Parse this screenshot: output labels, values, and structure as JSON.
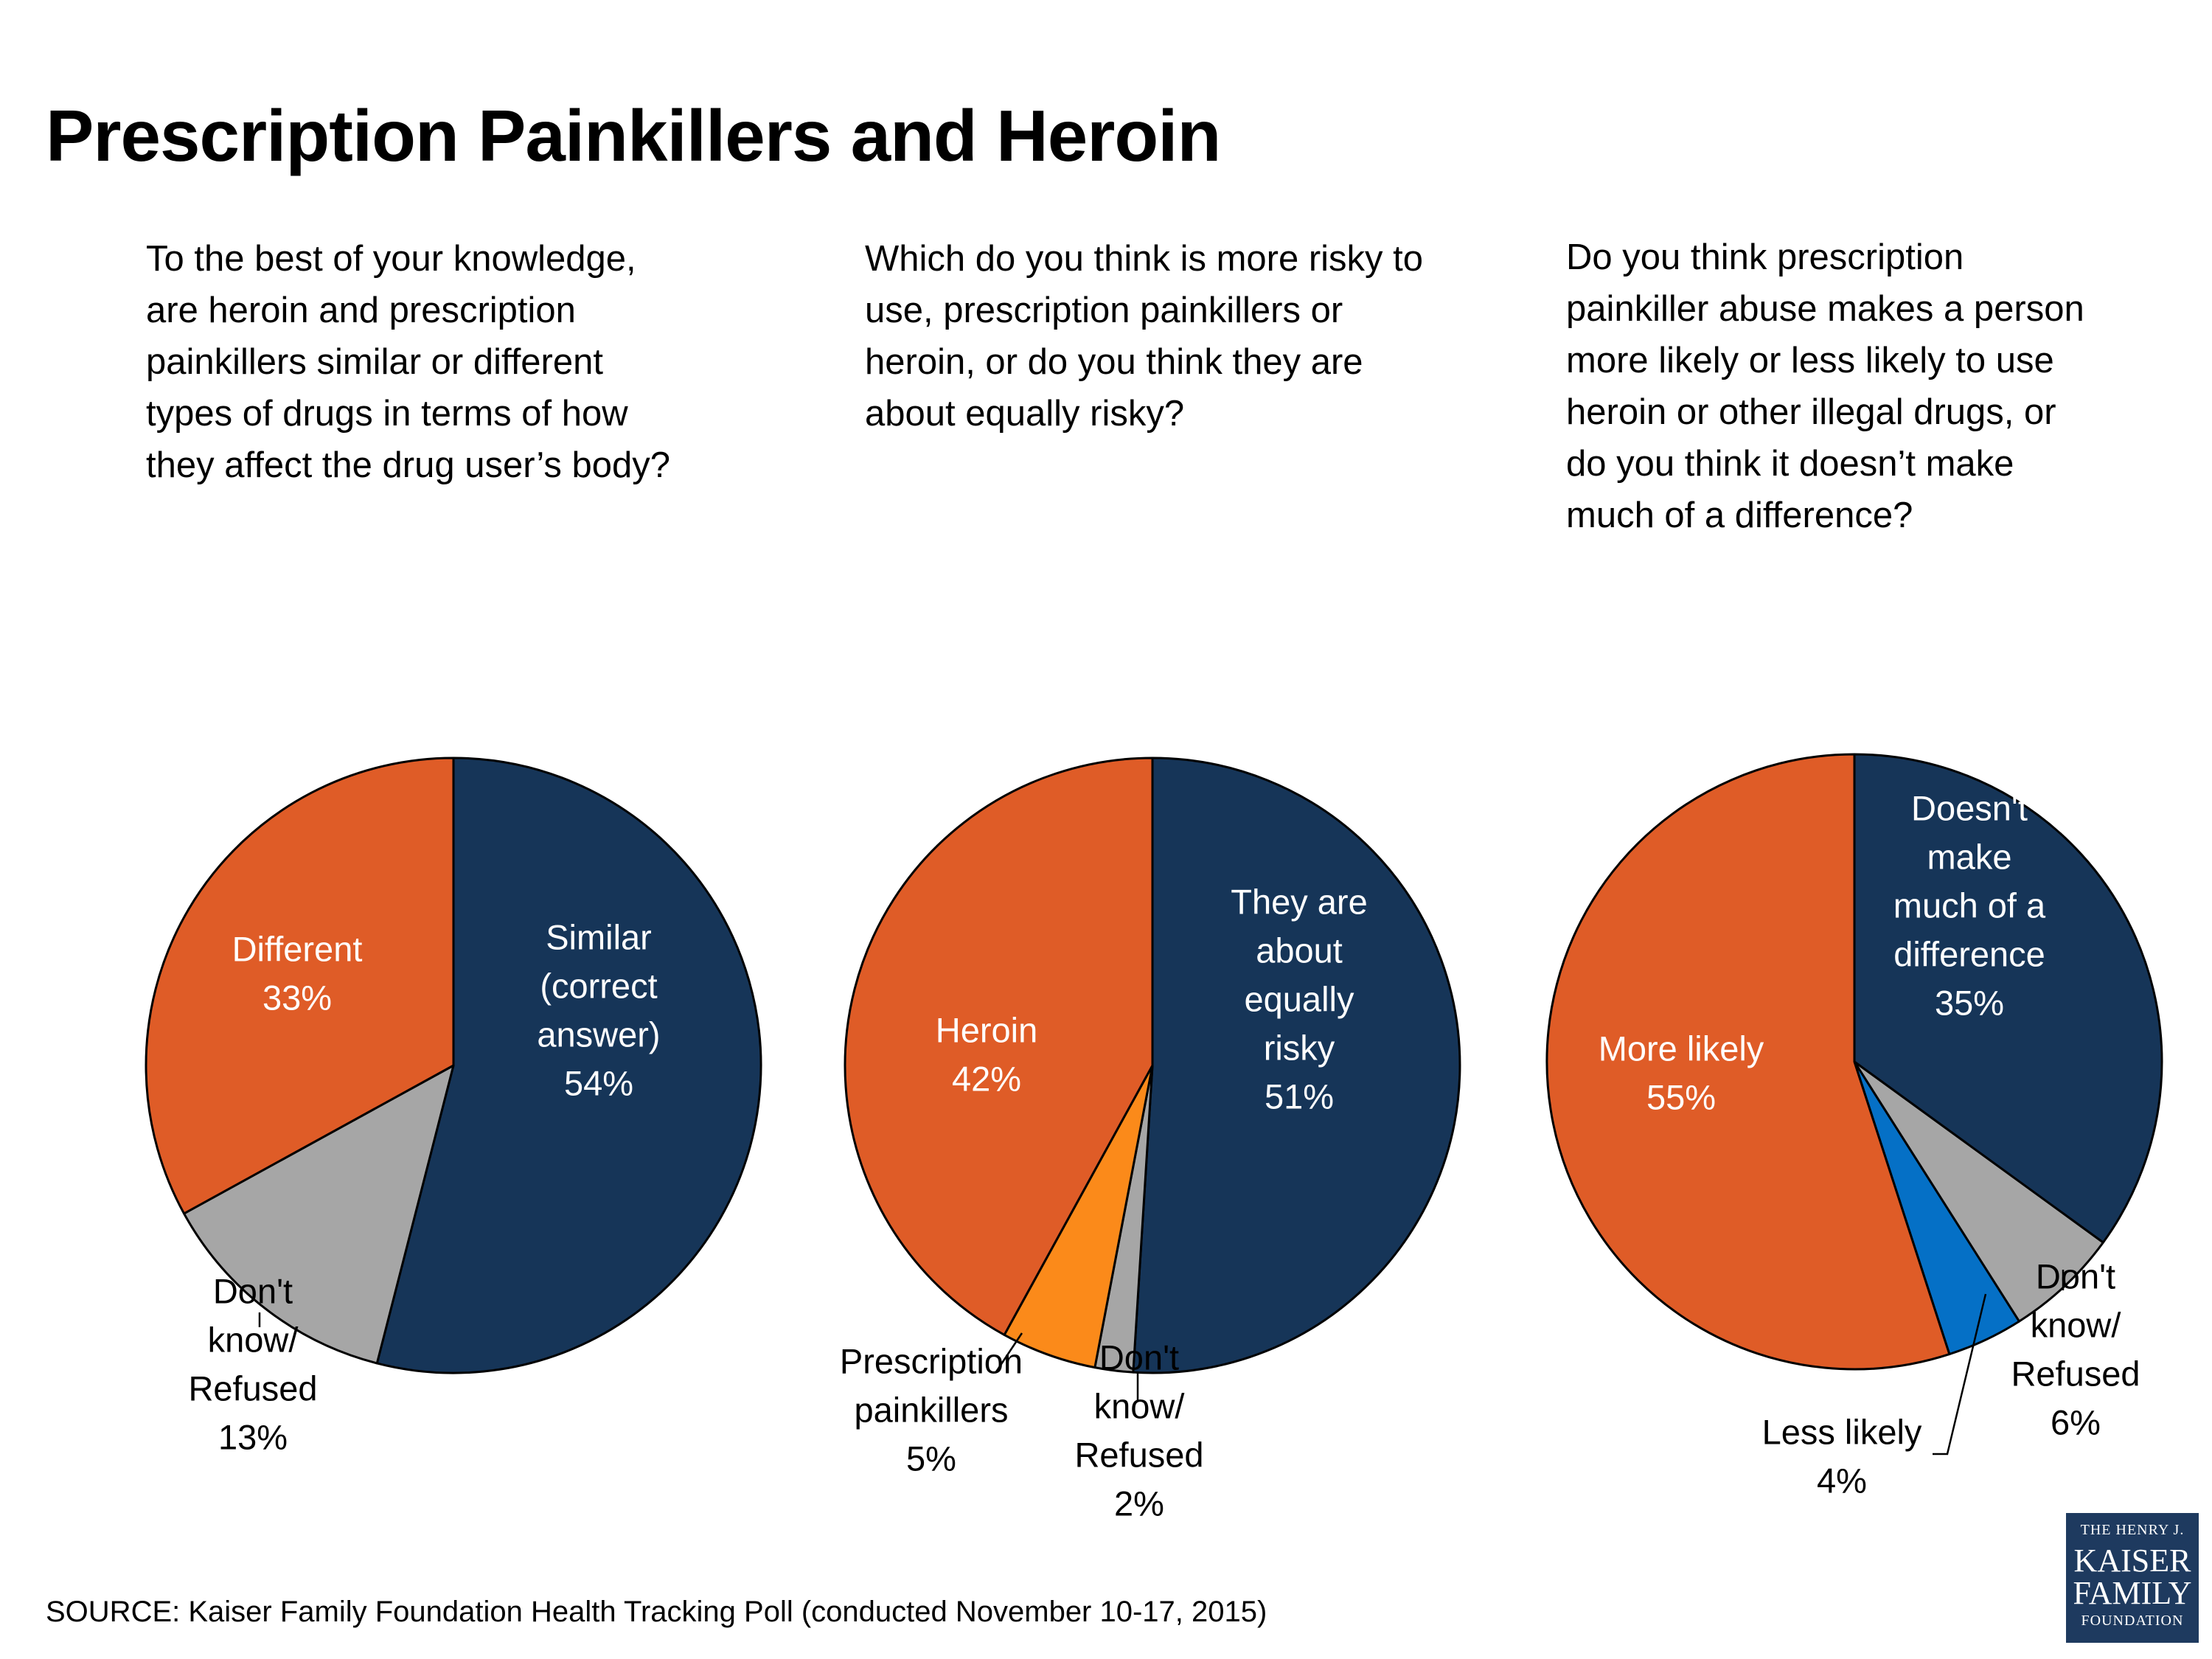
{
  "title": "Prescription Painkillers and Heroin",
  "questions": [
    [
      "To the best of your knowledge,",
      "are heroin and prescription",
      "painkillers similar or different",
      "types of drugs in terms of how",
      "they affect the drug user’s body?"
    ],
    [
      "Which do you think is more risky to",
      "use, prescription painkillers or",
      "heroin, or do you think they are",
      "about equally risky?"
    ],
    [
      "Do you think prescription",
      "painkiller abuse makes a person",
      "more likely or less likely to use",
      "heroin or other illegal drugs, or",
      "do you think it doesn’t make",
      "much of a difference?"
    ]
  ],
  "chart_data": [
    {
      "type": "pie",
      "title": "To the best of your knowledge, are heroin and prescription painkillers similar or different types of drugs in terms of how they affect the drug user’s body?",
      "start": "12 o'clock, clockwise",
      "slices": [
        {
          "label": "Similar (correct answer)",
          "lines": [
            "Similar",
            "(correct",
            "answer)"
          ],
          "value": 54,
          "pct": "54%",
          "color": "#163558",
          "text_color": "#ffffff",
          "label_position": "inside"
        },
        {
          "label": "Don't know/ Refused",
          "lines": [
            "Don't",
            "know/",
            "Refused"
          ],
          "value": 13,
          "pct": "13%",
          "color": "#a6a6a6",
          "text_color": "#000000",
          "label_position": "outside"
        },
        {
          "label": "Different",
          "lines": [
            "Different"
          ],
          "value": 33,
          "pct": "33%",
          "color": "#df5c27",
          "text_color": "#ffffff",
          "label_position": "inside"
        }
      ]
    },
    {
      "type": "pie",
      "title": "Which do you think is more risky to use, prescription painkillers or heroin, or do you think they are about equally risky?",
      "start": "12 o'clock, clockwise",
      "slices": [
        {
          "label": "They are about equally risky",
          "lines": [
            "They are",
            "about",
            "equally",
            "risky"
          ],
          "value": 51,
          "pct": "51%",
          "color": "#163558",
          "text_color": "#ffffff",
          "label_position": "inside"
        },
        {
          "label": "Don't know/ Refused",
          "lines": [
            "Don't",
            "know/",
            "Refused"
          ],
          "value": 2,
          "pct": "2%",
          "color": "#a6a6a6",
          "text_color": "#000000",
          "label_position": "outside"
        },
        {
          "label": "Prescription painkillers",
          "lines": [
            "Prescription",
            "painkillers"
          ],
          "value": 5,
          "pct": "5%",
          "color": "#fb8a1a",
          "text_color": "#000000",
          "label_position": "outside"
        },
        {
          "label": "Heroin",
          "lines": [
            "Heroin"
          ],
          "value": 42,
          "pct": "42%",
          "color": "#df5c27",
          "text_color": "#ffffff",
          "label_position": "inside"
        }
      ]
    },
    {
      "type": "pie",
      "title": "Do you think prescription painkiller abuse makes a person more likely or less likely to use heroin or other illegal drugs, or do you think it doesn’t make much of a difference?",
      "start": "12 o'clock, clockwise",
      "slices": [
        {
          "label": "Doesn't make much of a difference",
          "lines": [
            "Doesn't",
            "make",
            "much of a",
            "difference"
          ],
          "value": 35,
          "pct": "35%",
          "color": "#163558",
          "text_color": "#ffffff",
          "label_position": "inside"
        },
        {
          "label": "Don't know/ Refused",
          "lines": [
            "Don't",
            "know/",
            "Refused"
          ],
          "value": 6,
          "pct": "6%",
          "color": "#a6a6a6",
          "text_color": "#000000",
          "label_position": "outside"
        },
        {
          "label": "Less likely",
          "lines": [
            "Less likely"
          ],
          "value": 4,
          "pct": "4%",
          "color": "#0570c6",
          "text_color": "#000000",
          "label_position": "outside"
        },
        {
          "label": "More likely",
          "lines": [
            "More likely"
          ],
          "value": 55,
          "pct": "55%",
          "color": "#df5c27",
          "text_color": "#ffffff",
          "label_position": "inside"
        }
      ]
    }
  ],
  "source": "SOURCE: Kaiser Family Foundation Health Tracking Poll (conducted November 10-17, 2015)",
  "logo": {
    "line1": "THE HENRY J.",
    "line2": "KAISER",
    "line3": "FAMILY",
    "line4": "FOUNDATION",
    "color": "#1e3a5f"
  }
}
